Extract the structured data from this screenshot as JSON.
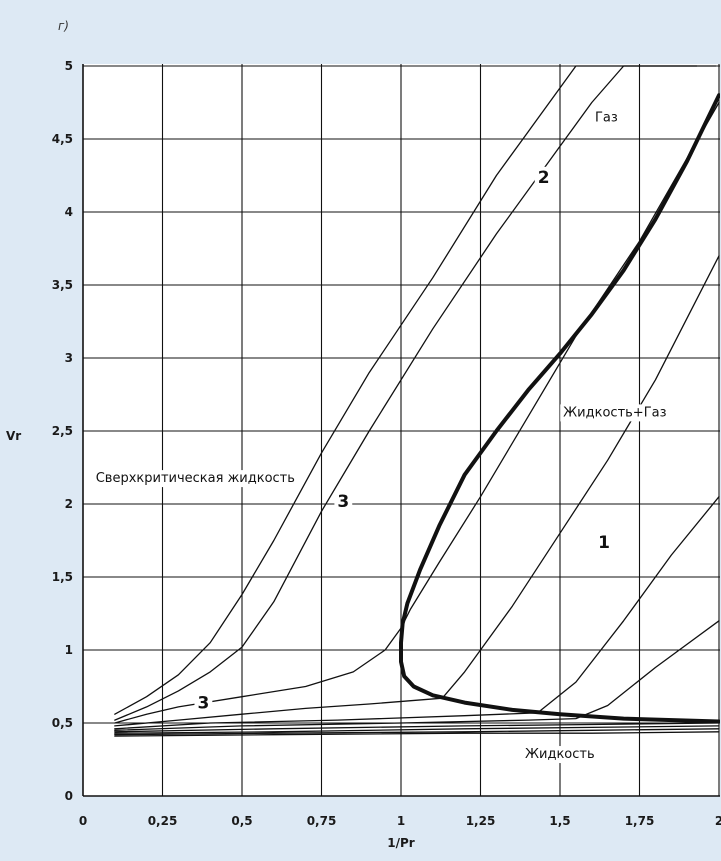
{
  "panel_label": "г)",
  "colors": {
    "background": "#dde9f4",
    "plot_background": "#ffffff",
    "line": "#111111",
    "grid": "#111111"
  },
  "chart_data": {
    "type": "line",
    "xlabel": "1/Pr",
    "ylabel": "Vr",
    "xlim": [
      0,
      2
    ],
    "ylim": [
      0,
      5
    ],
    "grid": true,
    "x_ticks": [
      0,
      0.25,
      0.5,
      0.75,
      1,
      1.25,
      1.5,
      1.75,
      2
    ],
    "x_tick_labels": [
      "0",
      "0,25",
      "0,5",
      "0,75",
      "1",
      "1,25",
      "1,5",
      "1,75",
      "2"
    ],
    "y_ticks": [
      0,
      0.5,
      1,
      1.5,
      2,
      2.5,
      3,
      3.5,
      4,
      4.5,
      5
    ],
    "y_tick_labels": [
      "0",
      "0,5",
      "1",
      "1,5",
      "2",
      "2,5",
      "3",
      "3,5",
      "4",
      "4,5",
      "5"
    ],
    "annotations": [
      {
        "text": "Газ",
        "x": 1.61,
        "y": 4.62
      },
      {
        "text": "Жидкость+Газ",
        "x": 1.51,
        "y": 2.6
      },
      {
        "text": "Сверхкритическая жидкость",
        "x": 0.04,
        "y": 2.15
      },
      {
        "text": "Жидкость",
        "x": 1.39,
        "y": 0.26
      },
      {
        "text": "1",
        "x": 1.62,
        "y": 1.7,
        "bold": true
      },
      {
        "text": "2",
        "x": 1.43,
        "y": 4.2,
        "bold": true
      },
      {
        "text": "3",
        "x": 0.8,
        "y": 1.98,
        "bold": true
      },
      {
        "text": "3",
        "x": 0.36,
        "y": 0.6,
        "bold": true
      }
    ],
    "series": [
      {
        "id": "saturation",
        "bold": true,
        "x": [
          2.0,
          1.9,
          1.8,
          1.7,
          1.6,
          1.5,
          1.4,
          1.3,
          1.2,
          1.12,
          1.06,
          1.02,
          1.005,
          1.0,
          1.0,
          1.01,
          1.04,
          1.1,
          1.2,
          1.35,
          1.5,
          1.7,
          2.0
        ],
        "y": [
          4.8,
          4.35,
          3.95,
          3.6,
          3.3,
          3.03,
          2.78,
          2.5,
          2.2,
          1.85,
          1.55,
          1.32,
          1.18,
          1.05,
          0.92,
          0.82,
          0.75,
          0.69,
          0.64,
          0.59,
          0.56,
          0.53,
          0.51
        ]
      },
      {
        "id": "tr_a",
        "x": [
          0.1,
          0.2,
          0.3,
          0.4,
          0.5,
          0.6,
          0.75,
          0.9,
          1.1,
          1.3,
          1.4,
          1.55,
          1.8,
          1.99
        ],
        "y": [
          0.56,
          0.68,
          0.83,
          1.05,
          1.38,
          1.75,
          2.35,
          2.9,
          3.55,
          4.25,
          4.55,
          5.0,
          5.0,
          5.0
        ]
      },
      {
        "id": "tr_b",
        "x": [
          0.1,
          0.2,
          0.3,
          0.4,
          0.5,
          0.6,
          0.75,
          0.9,
          1.1,
          1.3,
          1.5,
          1.6,
          1.7,
          1.93
        ],
        "y": [
          0.52,
          0.61,
          0.72,
          0.85,
          1.02,
          1.33,
          1.95,
          2.5,
          3.2,
          3.85,
          4.45,
          4.75,
          5.0,
          5.0
        ]
      },
      {
        "id": "tr_c",
        "x": [
          0.1,
          0.2,
          0.3,
          0.5,
          0.7,
          0.85,
          0.95,
          1.0,
          1.03,
          1.12,
          1.25,
          1.4,
          1.55,
          1.75,
          2.0
        ],
        "y": [
          0.5,
          0.56,
          0.61,
          0.68,
          0.75,
          0.85,
          1.0,
          1.15,
          1.28,
          1.6,
          2.05,
          2.6,
          3.15,
          3.8,
          4.75
        ]
      },
      {
        "id": "tr_d",
        "x": [
          0.1,
          0.3,
          0.5,
          0.7,
          0.9,
          1.13,
          1.2,
          1.35,
          1.5,
          1.65,
          1.8,
          2.0
        ],
        "y": [
          0.48,
          0.52,
          0.56,
          0.6,
          0.63,
          0.67,
          0.85,
          1.3,
          1.8,
          2.3,
          2.85,
          3.7
        ]
      },
      {
        "id": "tr_e",
        "x": [
          0.1,
          0.4,
          0.8,
          1.2,
          1.43,
          1.55,
          1.7,
          1.85,
          2.0
        ],
        "y": [
          0.46,
          0.5,
          0.52,
          0.55,
          0.57,
          0.78,
          1.2,
          1.65,
          2.05
        ]
      },
      {
        "id": "tr_f",
        "x": [
          0.1,
          0.5,
          1.0,
          1.4,
          1.55,
          1.65,
          1.8,
          2.0
        ],
        "y": [
          0.45,
          0.48,
          0.5,
          0.52,
          0.53,
          0.62,
          0.88,
          1.2
        ]
      },
      {
        "id": "tr_g",
        "x": [
          0.1,
          0.6,
          1.2,
          1.6,
          2.0
        ],
        "y": [
          0.44,
          0.46,
          0.48,
          0.49,
          0.5
        ]
      },
      {
        "id": "tr_h",
        "x": [
          0.1,
          0.6,
          1.2,
          1.6,
          2.0
        ],
        "y": [
          0.43,
          0.44,
          0.46,
          0.47,
          0.48
        ]
      },
      {
        "id": "tr_i",
        "x": [
          0.1,
          0.6,
          1.2,
          1.6,
          2.0
        ],
        "y": [
          0.42,
          0.43,
          0.44,
          0.45,
          0.46
        ]
      },
      {
        "id": "tr_j",
        "x": [
          0.1,
          0.6,
          1.2,
          1.6,
          2.0
        ],
        "y": [
          0.41,
          0.42,
          0.43,
          0.43,
          0.44
        ]
      }
    ]
  }
}
